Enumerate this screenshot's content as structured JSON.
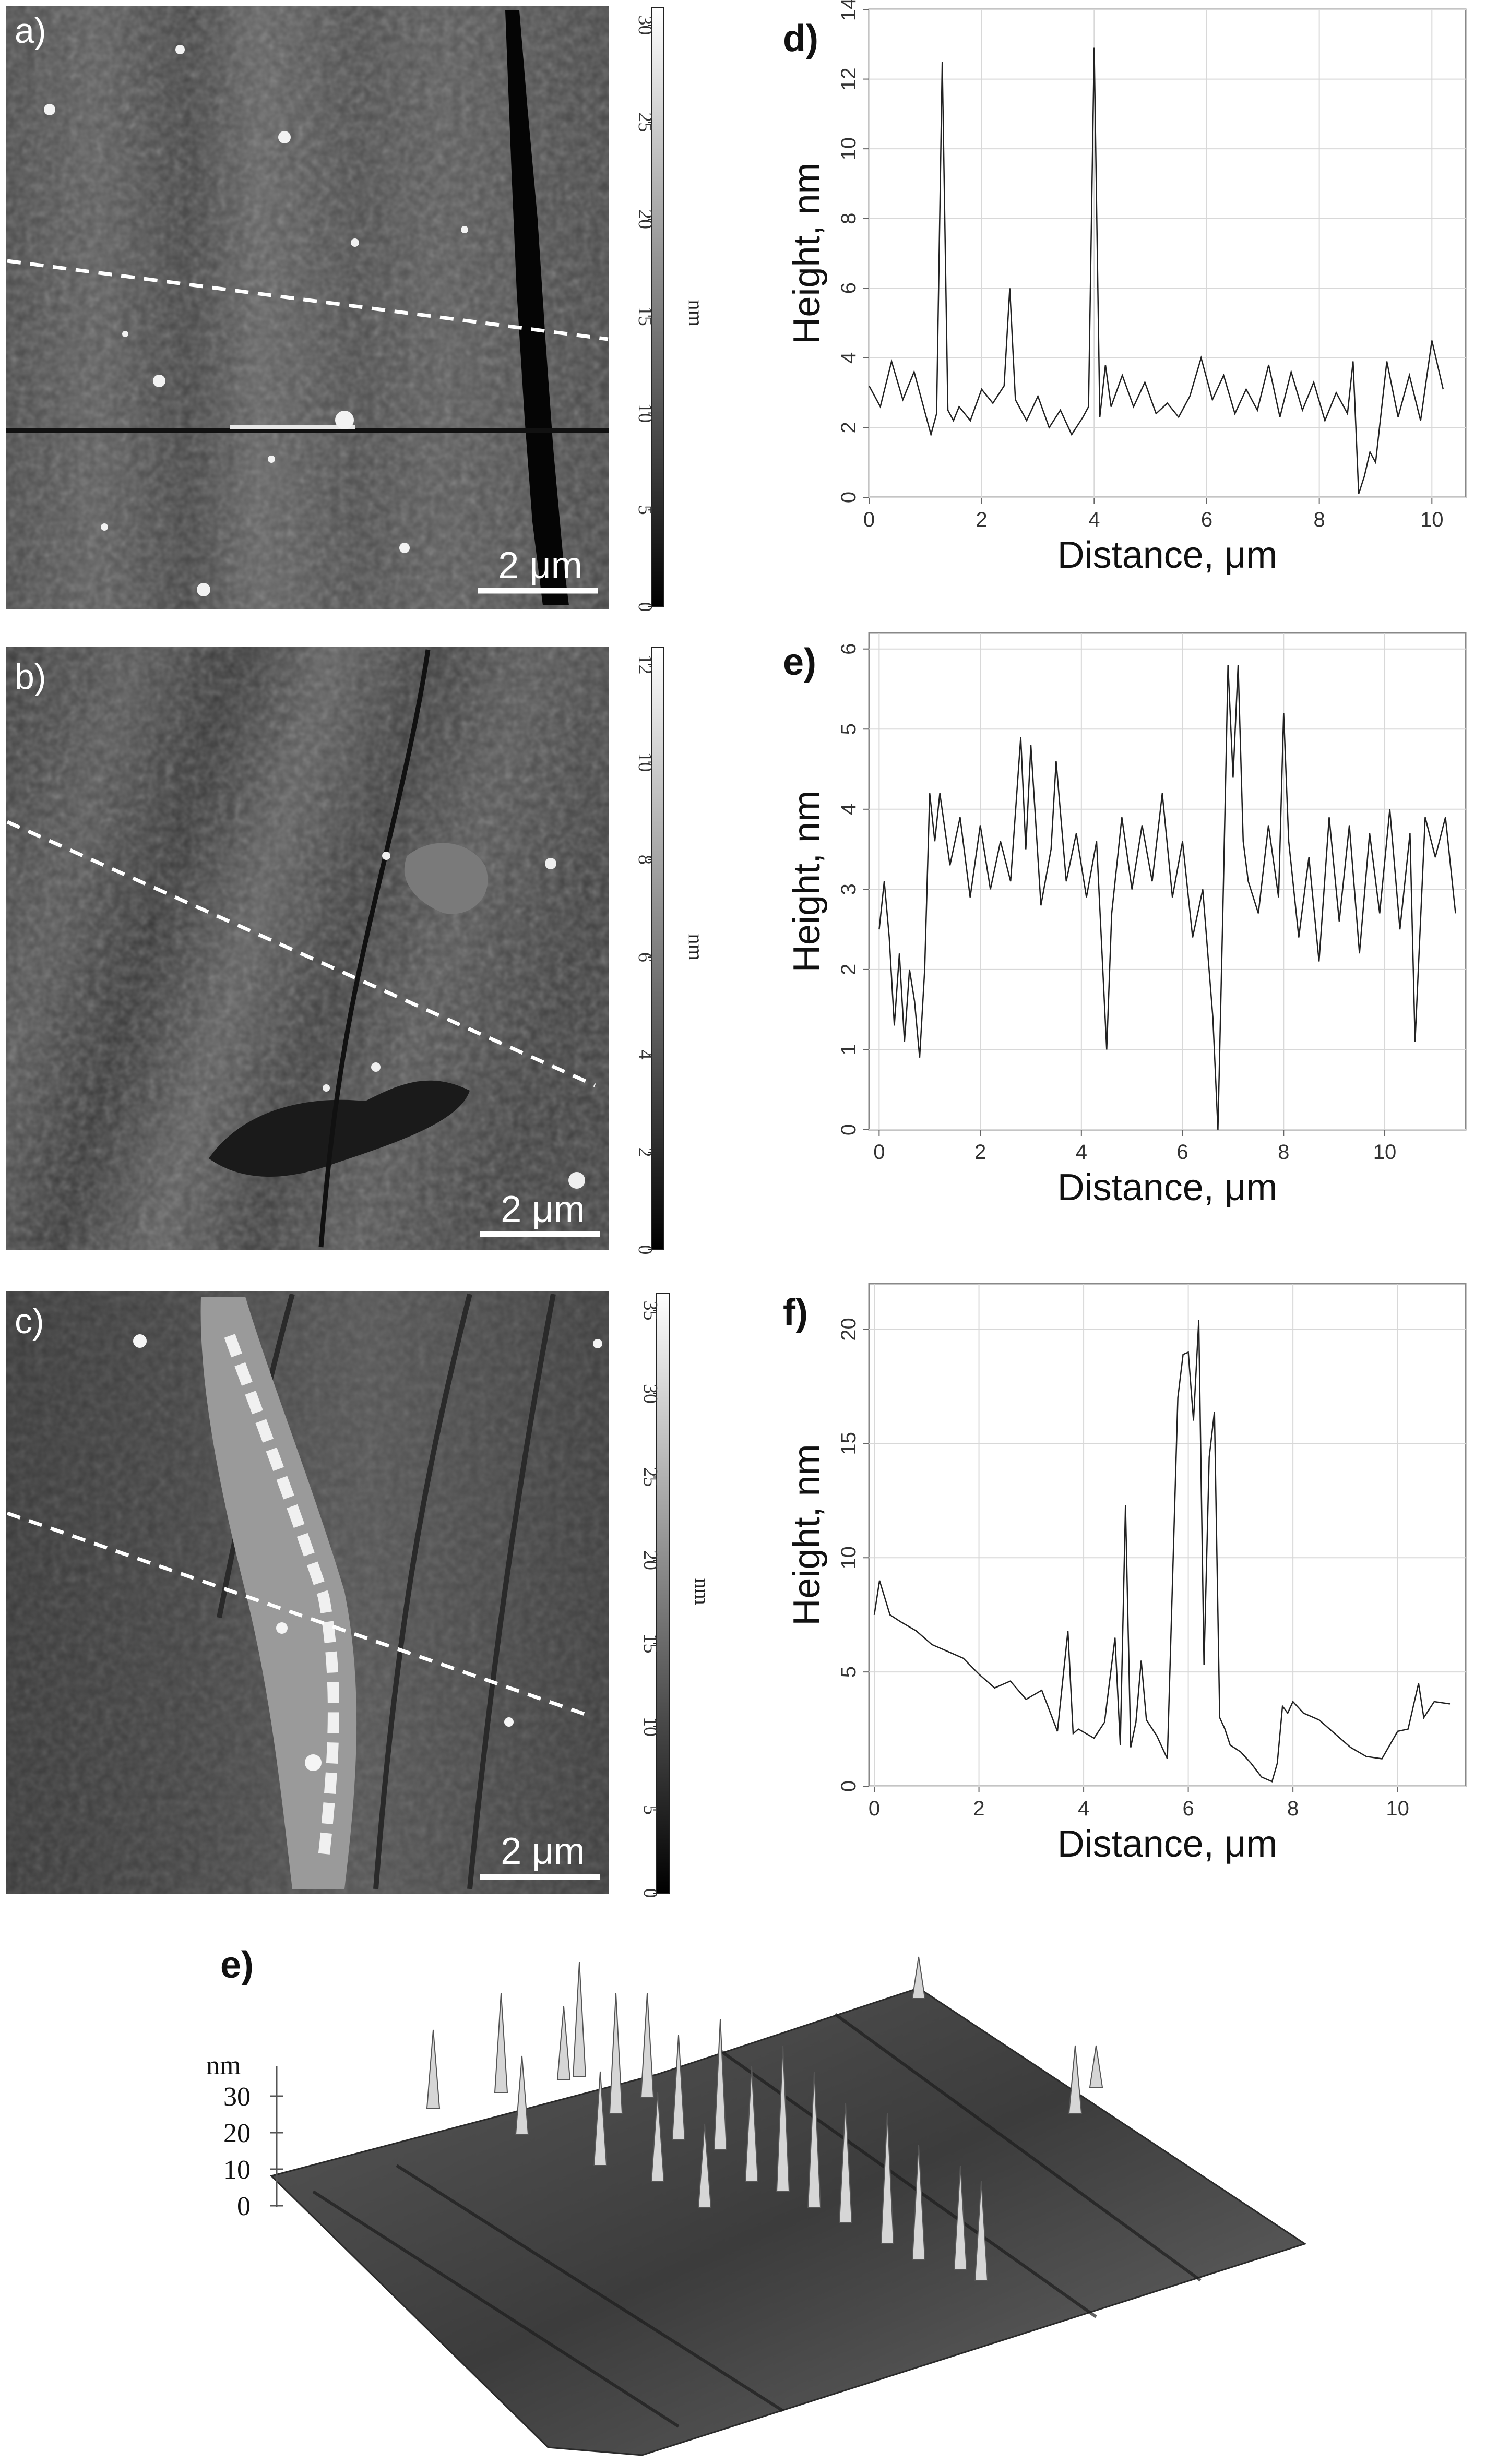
{
  "panels": {
    "a": {
      "label": "a)",
      "scale_bar": "2 μm",
      "colorbar_unit": "nm",
      "colorbar_ticks": [
        "0",
        "5",
        "10",
        "15",
        "20",
        "25",
        "30"
      ]
    },
    "b": {
      "label": "b)",
      "scale_bar": "2 μm",
      "colorbar_unit": "nm",
      "colorbar_ticks": [
        "0",
        "2",
        "4",
        "6",
        "8",
        "10",
        "12"
      ]
    },
    "c": {
      "label": "c)",
      "scale_bar": "2 μm",
      "colorbar_unit": "nm",
      "colorbar_ticks": [
        "0",
        "5",
        "10",
        "15",
        "20",
        "25",
        "30",
        "35"
      ]
    },
    "e3d": {
      "label": "e)",
      "axis_unit": "nm",
      "axis_ticks": [
        "0",
        "10",
        "20",
        "30"
      ]
    }
  },
  "chart_data": [
    {
      "panel": "d)",
      "type": "line",
      "title": "",
      "xlabel": "Distance, μm",
      "ylabel": "Height, nm",
      "xlim": [
        0,
        10.6
      ],
      "ylim": [
        0,
        14
      ],
      "xticks": [
        0,
        2,
        4,
        6,
        8,
        10
      ],
      "yticks": [
        0,
        2,
        4,
        6,
        8,
        10,
        12,
        14
      ],
      "grid": true,
      "x": [
        0,
        0.2,
        0.4,
        0.6,
        0.8,
        1.0,
        1.1,
        1.2,
        1.3,
        1.4,
        1.5,
        1.6,
        1.8,
        2.0,
        2.2,
        2.4,
        2.5,
        2.6,
        2.7,
        2.8,
        3.0,
        3.2,
        3.4,
        3.6,
        3.8,
        3.9,
        4.0,
        4.1,
        4.2,
        4.3,
        4.5,
        4.7,
        4.9,
        5.1,
        5.3,
        5.5,
        5.7,
        5.9,
        6.1,
        6.3,
        6.5,
        6.7,
        6.9,
        7.1,
        7.3,
        7.5,
        7.7,
        7.9,
        8.1,
        8.3,
        8.5,
        8.6,
        8.7,
        8.8,
        8.9,
        9.0,
        9.2,
        9.4,
        9.6,
        9.8,
        10.0,
        10.2
      ],
      "y": [
        3.2,
        2.6,
        3.9,
        2.8,
        3.6,
        2.4,
        1.8,
        2.4,
        12.5,
        2.5,
        2.2,
        2.6,
        2.2,
        3.1,
        2.7,
        3.2,
        6.0,
        2.8,
        2.5,
        2.2,
        2.9,
        2.0,
        2.5,
        1.8,
        2.3,
        2.6,
        12.9,
        2.3,
        3.8,
        2.6,
        3.5,
        2.6,
        3.3,
        2.4,
        2.7,
        2.3,
        2.9,
        4.0,
        2.8,
        3.5,
        2.4,
        3.1,
        2.5,
        3.8,
        2.3,
        3.6,
        2.5,
        3.3,
        2.2,
        3.0,
        2.4,
        3.9,
        0.1,
        0.6,
        1.3,
        1.0,
        3.9,
        2.3,
        3.5,
        2.2,
        4.5,
        3.1
      ]
    },
    {
      "panel": "e)",
      "type": "line",
      "title": "",
      "xlabel": "Distance, μm",
      "ylabel": "Height, nm",
      "xlim": [
        -0.2,
        11.6
      ],
      "ylim": [
        0,
        6.2
      ],
      "xticks": [
        0,
        2,
        4,
        6,
        8,
        10
      ],
      "yticks": [
        0,
        1,
        2,
        3,
        4,
        5,
        6
      ],
      "grid": true,
      "x": [
        0,
        0.1,
        0.2,
        0.3,
        0.4,
        0.5,
        0.6,
        0.7,
        0.8,
        0.9,
        1.0,
        1.1,
        1.2,
        1.4,
        1.6,
        1.8,
        2.0,
        2.2,
        2.4,
        2.6,
        2.8,
        2.9,
        3.0,
        3.2,
        3.4,
        3.5,
        3.7,
        3.9,
        4.1,
        4.3,
        4.5,
        4.6,
        4.8,
        5.0,
        5.2,
        5.4,
        5.6,
        5.8,
        6.0,
        6.2,
        6.4,
        6.6,
        6.7,
        6.8,
        6.9,
        7.0,
        7.1,
        7.2,
        7.3,
        7.5,
        7.7,
        7.9,
        8.0,
        8.1,
        8.3,
        8.5,
        8.7,
        8.9,
        9.1,
        9.3,
        9.5,
        9.7,
        9.9,
        10.1,
        10.3,
        10.5,
        10.6,
        10.8,
        11.0,
        11.2,
        11.4
      ],
      "y": [
        2.5,
        3.1,
        2.4,
        1.3,
        2.2,
        1.1,
        2.0,
        1.6,
        0.9,
        2.0,
        4.2,
        3.6,
        4.2,
        3.3,
        3.9,
        2.9,
        3.8,
        3.0,
        3.6,
        3.1,
        4.9,
        3.5,
        4.8,
        2.8,
        3.5,
        4.6,
        3.1,
        3.7,
        2.9,
        3.6,
        1.0,
        2.7,
        3.9,
        3.0,
        3.8,
        3.1,
        4.2,
        2.9,
        3.6,
        2.4,
        3.0,
        1.4,
        0.0,
        2.8,
        5.8,
        4.4,
        5.8,
        3.6,
        3.1,
        2.7,
        3.8,
        2.9,
        5.2,
        3.6,
        2.4,
        3.4,
        2.1,
        3.9,
        2.6,
        3.8,
        2.2,
        3.7,
        2.7,
        4.0,
        2.5,
        3.7,
        1.1,
        3.9,
        3.4,
        3.9,
        2.7
      ]
    },
    {
      "panel": "f)",
      "type": "line",
      "title": "",
      "xlabel": "Distance, μm",
      "ylabel": "Height, nm",
      "xlim": [
        -0.1,
        11.3
      ],
      "ylim": [
        0,
        22
      ],
      "xticks": [
        0,
        2,
        4,
        6,
        8,
        10
      ],
      "yticks": [
        0,
        5,
        10,
        15,
        20
      ],
      "grid": true,
      "x": [
        0,
        0.1,
        0.3,
        0.5,
        0.8,
        1.1,
        1.4,
        1.7,
        2.0,
        2.3,
        2.6,
        2.9,
        3.2,
        3.5,
        3.7,
        3.8,
        3.9,
        4.2,
        4.4,
        4.6,
        4.7,
        4.8,
        4.9,
        5.0,
        5.1,
        5.2,
        5.4,
        5.6,
        5.8,
        5.9,
        6.0,
        6.1,
        6.2,
        6.3,
        6.4,
        6.5,
        6.6,
        6.7,
        6.8,
        7.0,
        7.2,
        7.4,
        7.6,
        7.7,
        7.8,
        7.9,
        8.0,
        8.2,
        8.5,
        8.8,
        9.1,
        9.4,
        9.7,
        10.0,
        10.2,
        10.4,
        10.5,
        10.7,
        11.0
      ],
      "y": [
        7.5,
        9.0,
        7.5,
        7.2,
        6.8,
        6.2,
        5.9,
        5.6,
        4.9,
        4.3,
        4.6,
        3.8,
        4.2,
        2.4,
        6.8,
        2.3,
        2.5,
        2.1,
        2.8,
        6.5,
        1.8,
        12.3,
        1.7,
        2.8,
        5.5,
        2.9,
        2.2,
        1.2,
        17.0,
        18.9,
        19.0,
        16.0,
        20.4,
        5.3,
        14.4,
        16.4,
        3.0,
        2.5,
        1.8,
        1.5,
        1.0,
        0.4,
        0.2,
        1.0,
        3.5,
        3.2,
        3.7,
        3.2,
        2.9,
        2.3,
        1.7,
        1.3,
        1.2,
        2.4,
        2.5,
        4.5,
        3.0,
        3.7,
        3.6
      ]
    }
  ]
}
